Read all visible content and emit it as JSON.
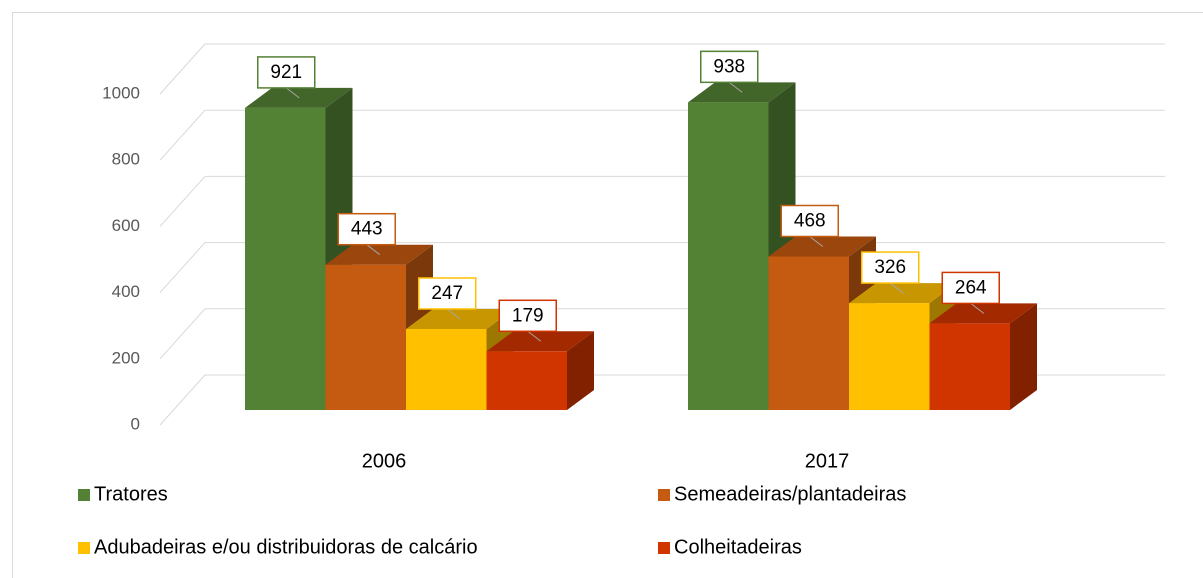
{
  "chart_data": {
    "type": "bar3d",
    "categories": [
      "2006",
      "2017"
    ],
    "series": [
      {
        "name": "Tratores",
        "color": "#548235",
        "values": [
          921,
          938
        ]
      },
      {
        "name": "Semeadeiras/plantadeiras",
        "color": "#c55a11",
        "values": [
          443,
          468
        ]
      },
      {
        "name": "Adubadeiras e/ou distribuidoras de calcário",
        "color": "#ffc000",
        "values": [
          247,
          326
        ]
      },
      {
        "name": "Colheitadeiras",
        "color": "#d03500",
        "values": [
          179,
          264
        ]
      }
    ],
    "ylim": [
      0,
      1000
    ],
    "yticks": [
      0,
      200,
      400,
      600,
      800,
      1000
    ],
    "grid": true,
    "legend": "bottom"
  }
}
